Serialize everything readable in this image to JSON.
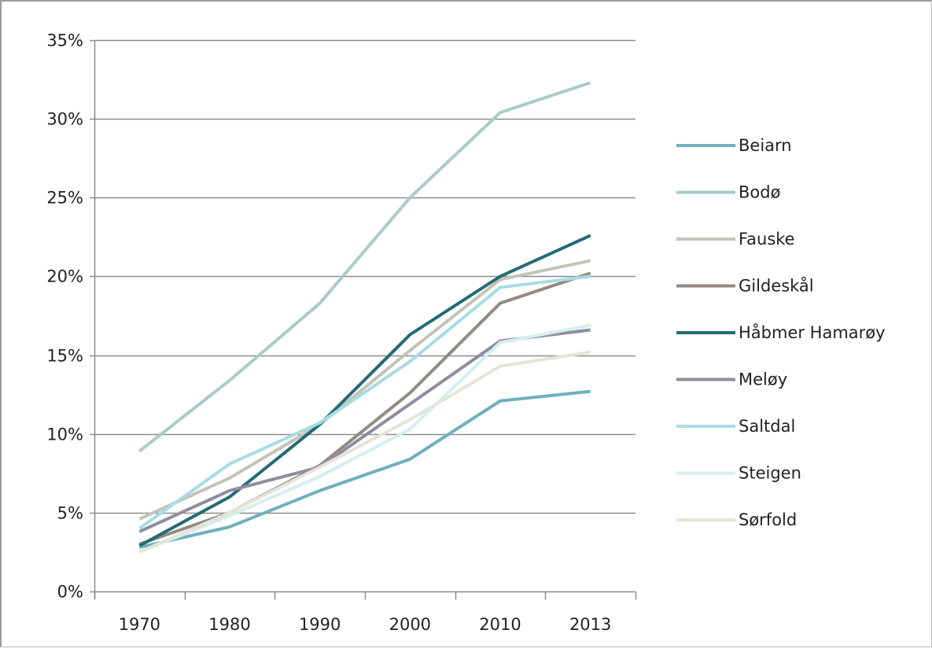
{
  "chart_data": {
    "type": "line",
    "title": "",
    "xlabel": "",
    "ylabel": "",
    "categories": [
      "1970",
      "1980",
      "1990",
      "2000",
      "2010",
      "2013"
    ],
    "ylim": [
      0,
      35
    ],
    "y_ticks": [
      "0%",
      "5%",
      "10%",
      "15%",
      "20%",
      "25%",
      "30%",
      "35%"
    ],
    "y_tick_values": [
      0,
      5,
      10,
      15,
      20,
      25,
      30,
      35
    ],
    "grid": true,
    "legend_position": "right",
    "series": [
      {
        "name": "Beiarn",
        "color": "#6fb0bd",
        "values": [
          2.8,
          4.1,
          6.4,
          8.4,
          12.1,
          12.7
        ]
      },
      {
        "name": "Bodø",
        "color": "#a9cbc9",
        "values": [
          8.9,
          13.4,
          18.3,
          25.0,
          30.4,
          32.3
        ]
      },
      {
        "name": "Fauske",
        "color": "#c3c3b6",
        "values": [
          4.6,
          7.2,
          10.6,
          15.3,
          19.8,
          21.0
        ]
      },
      {
        "name": "Gildeskål",
        "color": "#938b82",
        "values": [
          3.0,
          5.0,
          8.0,
          12.6,
          18.3,
          20.2
        ]
      },
      {
        "name": "Håbmer Hamarøy",
        "color": "#236b74",
        "values": [
          2.9,
          6.0,
          10.6,
          16.3,
          20.0,
          22.6
        ]
      },
      {
        "name": "Meløy",
        "color": "#8e8da0",
        "values": [
          3.8,
          6.4,
          7.9,
          11.9,
          15.9,
          16.6
        ]
      },
      {
        "name": "Saltdal",
        "color": "#a7dce4",
        "values": [
          4.0,
          8.1,
          10.7,
          14.6,
          19.3,
          20.0
        ]
      },
      {
        "name": "Steigen",
        "color": "#d5eeee",
        "values": [
          2.5,
          4.8,
          7.3,
          10.3,
          15.8,
          16.9
        ]
      },
      {
        "name": "Sørfold",
        "color": "#e5e4d7",
        "values": [
          2.5,
          5.0,
          7.9,
          10.9,
          14.3,
          15.2
        ]
      }
    ]
  }
}
